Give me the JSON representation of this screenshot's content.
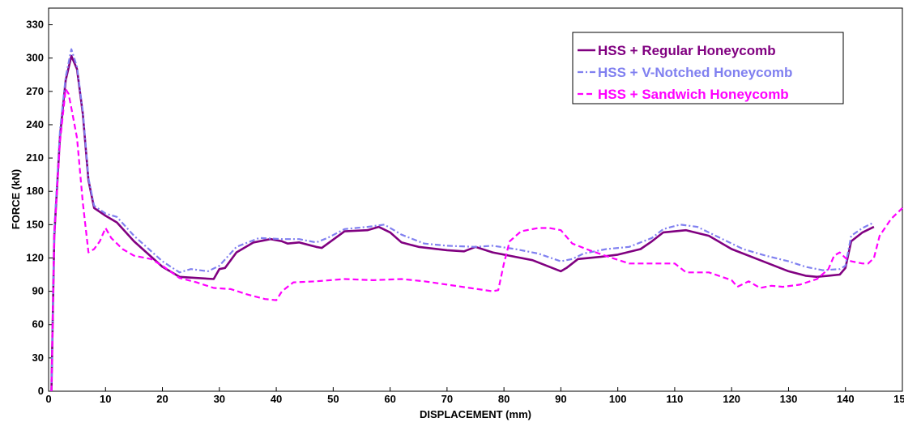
{
  "chart_data": {
    "type": "line",
    "title": "",
    "xlabel": "DISPLACEMENT (mm)",
    "ylabel": "FORCE (kN)",
    "xlim": [
      0,
      150
    ],
    "ylim": [
      0,
      345
    ],
    "xticks": [
      0,
      10,
      20,
      30,
      40,
      50,
      60,
      70,
      80,
      90,
      100,
      110,
      120,
      130,
      140,
      150
    ],
    "yticks": [
      0,
      30,
      60,
      90,
      120,
      150,
      180,
      210,
      240,
      270,
      300,
      330
    ],
    "grid": false,
    "legend_position": "top-right",
    "series": [
      {
        "name": "HSS + Regular Honeycomb",
        "color": "#800080",
        "style": "solid",
        "points": [
          [
            0.5,
            0
          ],
          [
            1,
            140
          ],
          [
            2,
            230
          ],
          [
            3,
            280
          ],
          [
            4,
            302
          ],
          [
            5,
            290
          ],
          [
            6,
            250
          ],
          [
            7,
            190
          ],
          [
            8,
            165
          ],
          [
            10,
            158
          ],
          [
            12,
            152
          ],
          [
            15,
            135
          ],
          [
            20,
            112
          ],
          [
            23,
            103
          ],
          [
            26,
            102
          ],
          [
            29,
            101
          ],
          [
            30,
            110
          ],
          [
            31,
            111
          ],
          [
            33,
            125
          ],
          [
            36,
            134
          ],
          [
            39,
            137
          ],
          [
            41,
            135
          ],
          [
            42,
            133
          ],
          [
            44,
            134
          ],
          [
            47,
            130
          ],
          [
            48,
            129
          ],
          [
            52,
            144
          ],
          [
            56,
            145
          ],
          [
            58,
            148
          ],
          [
            60,
            143
          ],
          [
            62,
            134
          ],
          [
            65,
            130
          ],
          [
            70,
            127
          ],
          [
            73,
            126
          ],
          [
            75,
            130
          ],
          [
            78,
            125
          ],
          [
            82,
            121
          ],
          [
            85,
            118
          ],
          [
            88,
            112
          ],
          [
            90,
            108
          ],
          [
            91,
            111
          ],
          [
            93,
            119
          ],
          [
            97,
            121
          ],
          [
            100,
            123
          ],
          [
            104,
            128
          ],
          [
            106,
            135
          ],
          [
            108,
            143
          ],
          [
            112,
            145
          ],
          [
            116,
            140
          ],
          [
            120,
            128
          ],
          [
            125,
            118
          ],
          [
            130,
            108
          ],
          [
            133,
            104
          ],
          [
            135,
            103
          ],
          [
            137,
            104
          ],
          [
            139,
            105
          ],
          [
            140,
            111
          ],
          [
            141,
            135
          ],
          [
            143,
            143
          ],
          [
            145,
            148
          ]
        ]
      },
      {
        "name": "HSS + V-Notched Honeycomb",
        "color": "#8080f0",
        "style": "dash-dot",
        "points": [
          [
            0.5,
            0
          ],
          [
            1,
            145
          ],
          [
            2,
            235
          ],
          [
            3,
            283
          ],
          [
            4,
            308
          ],
          [
            5,
            292
          ],
          [
            6,
            252
          ],
          [
            7,
            192
          ],
          [
            8,
            167
          ],
          [
            10,
            160
          ],
          [
            12,
            157
          ],
          [
            15,
            140
          ],
          [
            20,
            117
          ],
          [
            23,
            107
          ],
          [
            25,
            110
          ],
          [
            28,
            108
          ],
          [
            30,
            113
          ],
          [
            33,
            130
          ],
          [
            37,
            138
          ],
          [
            41,
            137
          ],
          [
            44,
            137
          ],
          [
            47,
            134
          ],
          [
            49,
            138
          ],
          [
            52,
            146
          ],
          [
            56,
            148
          ],
          [
            59,
            150
          ],
          [
            62,
            141
          ],
          [
            66,
            133
          ],
          [
            70,
            131
          ],
          [
            75,
            130
          ],
          [
            78,
            131
          ],
          [
            82,
            128
          ],
          [
            86,
            124
          ],
          [
            90,
            117
          ],
          [
            92,
            119
          ],
          [
            94,
            124
          ],
          [
            98,
            128
          ],
          [
            102,
            130
          ],
          [
            106,
            138
          ],
          [
            108,
            146
          ],
          [
            111,
            150
          ],
          [
            114,
            148
          ],
          [
            118,
            138
          ],
          [
            122,
            128
          ],
          [
            126,
            122
          ],
          [
            130,
            117
          ],
          [
            133,
            112
          ],
          [
            136,
            109
          ],
          [
            139,
            110
          ],
          [
            140,
            113
          ],
          [
            141,
            140
          ],
          [
            143,
            147
          ],
          [
            145,
            152
          ]
        ]
      },
      {
        "name": "HSS + Sandwich Honeycomb",
        "color": "#ff00ff",
        "style": "dashed",
        "points": [
          [
            0.5,
            0
          ],
          [
            1,
            140
          ],
          [
            2,
            225
          ],
          [
            3,
            272
          ],
          [
            3.5,
            268
          ],
          [
            4,
            255
          ],
          [
            5,
            228
          ],
          [
            6,
            170
          ],
          [
            7,
            125
          ],
          [
            8,
            128
          ],
          [
            9,
            135
          ],
          [
            10,
            147
          ],
          [
            11,
            138
          ],
          [
            13,
            128
          ],
          [
            15,
            122
          ],
          [
            18,
            119
          ],
          [
            20,
            113
          ],
          [
            23,
            102
          ],
          [
            26,
            98
          ],
          [
            29,
            93
          ],
          [
            32,
            92
          ],
          [
            35,
            87
          ],
          [
            38,
            83
          ],
          [
            40,
            82
          ],
          [
            41,
            90
          ],
          [
            43,
            98
          ],
          [
            47,
            99
          ],
          [
            52,
            101
          ],
          [
            57,
            100
          ],
          [
            62,
            101
          ],
          [
            66,
            99
          ],
          [
            70,
            96
          ],
          [
            74,
            93
          ],
          [
            78,
            90
          ],
          [
            79,
            91
          ],
          [
            80,
            115
          ],
          [
            81,
            135
          ],
          [
            83,
            144
          ],
          [
            86,
            147
          ],
          [
            88,
            147
          ],
          [
            90,
            145
          ],
          [
            92,
            133
          ],
          [
            95,
            127
          ],
          [
            99,
            120
          ],
          [
            102,
            115
          ],
          [
            106,
            115
          ],
          [
            110,
            115
          ],
          [
            112,
            107
          ],
          [
            116,
            107
          ],
          [
            120,
            100
          ],
          [
            121,
            94
          ],
          [
            123,
            99
          ],
          [
            125,
            93
          ],
          [
            127,
            95
          ],
          [
            129,
            94
          ],
          [
            132,
            96
          ],
          [
            135,
            101
          ],
          [
            137,
            110
          ],
          [
            138,
            122
          ],
          [
            139,
            125
          ],
          [
            140,
            120
          ],
          [
            141,
            117
          ],
          [
            143,
            115
          ],
          [
            144,
            115
          ],
          [
            145,
            120
          ],
          [
            146,
            140
          ],
          [
            148,
            155
          ],
          [
            150,
            165
          ]
        ]
      }
    ]
  }
}
